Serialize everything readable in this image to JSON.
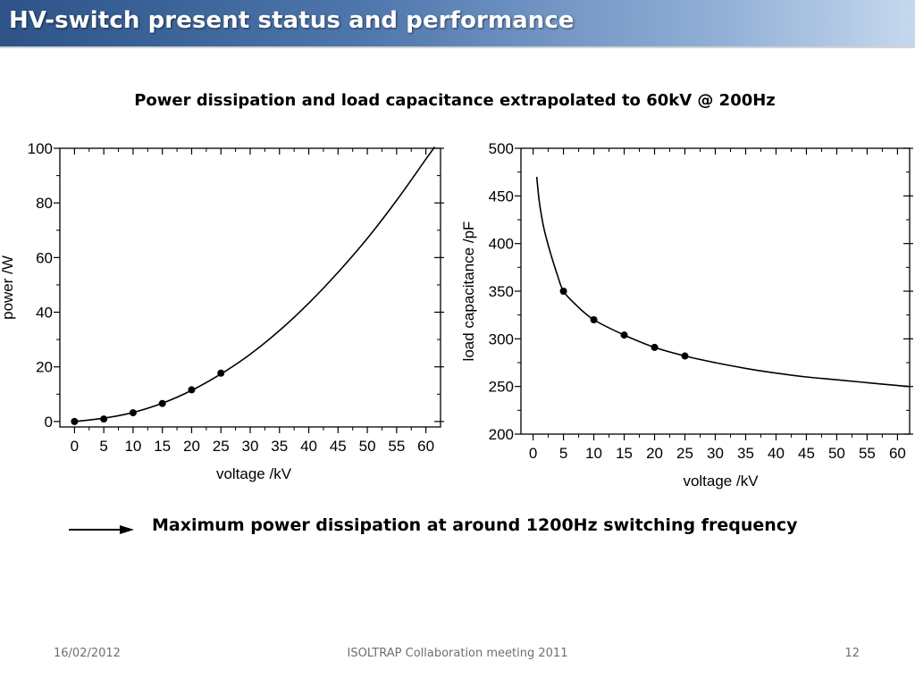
{
  "slide": {
    "title": "HV-switch present status and performance",
    "subtitle": "Power dissipation and load capacitance extrapolated to 60kV @ 200Hz",
    "conclusion": "Maximum power dissipation at around 1200Hz switching frequency",
    "footer": {
      "date": "16/02/2012",
      "event": "ISOLTRAP Collaboration meeting 2011",
      "page": "12"
    }
  },
  "chart_data": [
    {
      "type": "scatter",
      "xlabel": "voltage /kV",
      "ylabel": "power /W",
      "xlim": [
        -2.5,
        62.5
      ],
      "ylim": [
        -2,
        100
      ],
      "xticks": [
        0,
        5,
        10,
        15,
        20,
        25,
        30,
        35,
        40,
        45,
        50,
        55,
        60
      ],
      "yticks": [
        0,
        20,
        40,
        60,
        80,
        100
      ],
      "grid": false,
      "series": [
        {
          "kind": "points",
          "x": [
            0,
            5,
            10,
            15,
            20,
            25
          ],
          "y": [
            0,
            0.9,
            3.2,
            6.6,
            11.6,
            17.7
          ]
        },
        {
          "kind": "fit-line",
          "x": [
            0,
            5,
            10,
            15,
            20,
            25,
            30,
            35,
            40,
            45,
            50,
            55,
            60,
            61.5
          ],
          "y": [
            0,
            1.2,
            3.3,
            6.7,
            11.4,
            17.4,
            24.6,
            33.3,
            43.3,
            54.6,
            67.0,
            80.9,
            96.0,
            100.5
          ]
        }
      ]
    },
    {
      "type": "scatter",
      "xlabel": "voltage /kV",
      "ylabel": "load capacitance /pF",
      "xlim": [
        -2,
        62
      ],
      "ylim": [
        200,
        500
      ],
      "xticks": [
        0,
        5,
        10,
        15,
        20,
        25,
        30,
        35,
        40,
        45,
        50,
        55,
        60
      ],
      "yticks": [
        200,
        250,
        300,
        350,
        400,
        450,
        500
      ],
      "grid": false,
      "series": [
        {
          "kind": "points",
          "x": [
            5,
            10,
            15,
            20,
            25
          ],
          "y": [
            350,
            320,
            304,
            291,
            282
          ]
        },
        {
          "kind": "fit-line",
          "x": [
            0.6,
            1,
            1.5,
            2,
            3,
            4,
            5,
            7,
            10,
            15,
            20,
            25,
            30,
            35,
            40,
            45,
            50,
            55,
            60,
            62
          ],
          "y": [
            470,
            445,
            425,
            410,
            387,
            367,
            350,
            336,
            320,
            304,
            291,
            282,
            275,
            269,
            264,
            260,
            257,
            254,
            251,
            250
          ]
        }
      ]
    }
  ]
}
